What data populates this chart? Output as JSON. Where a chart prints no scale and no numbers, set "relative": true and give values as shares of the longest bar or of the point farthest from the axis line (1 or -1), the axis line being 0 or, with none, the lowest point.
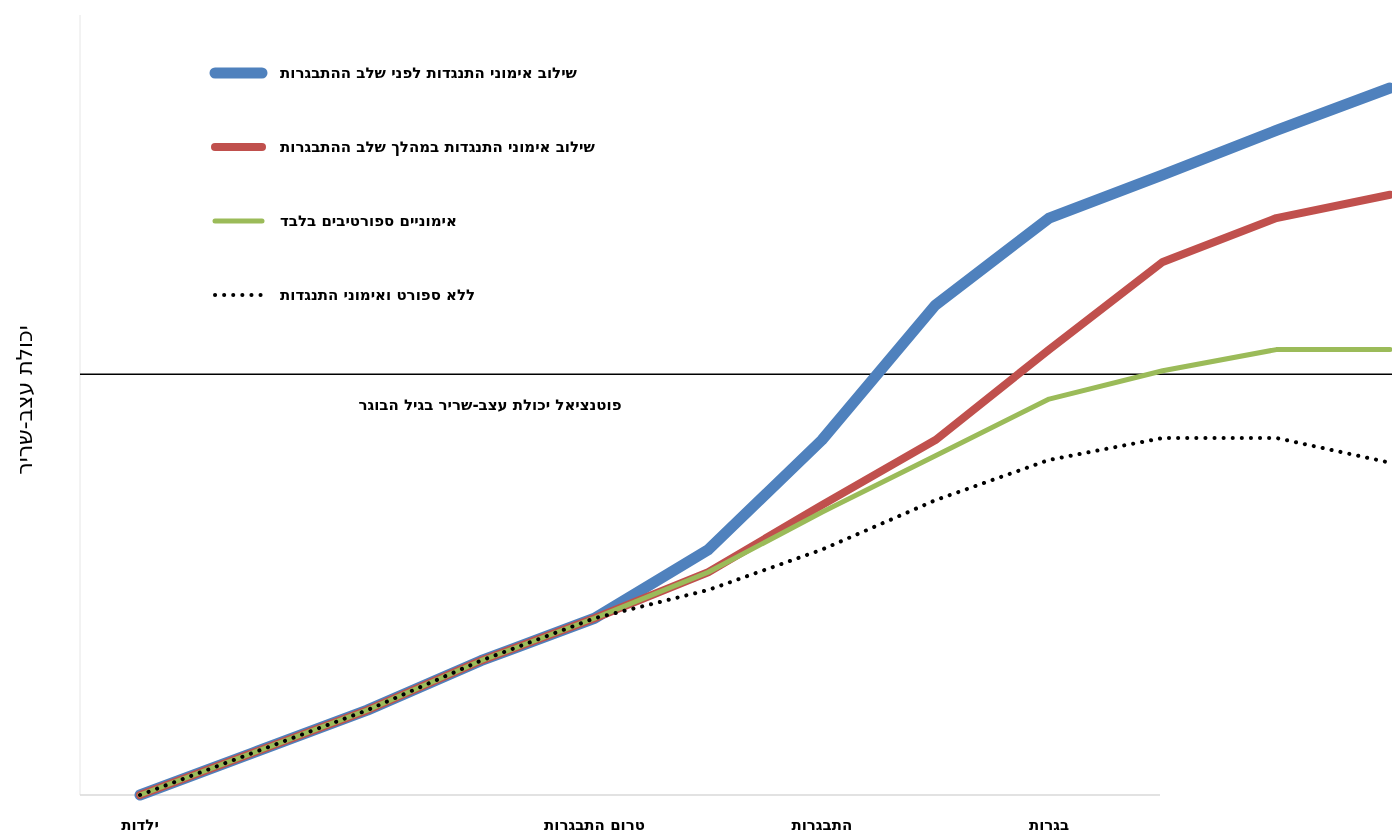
{
  "chart_data": {
    "type": "line",
    "relative": true,
    "ylabel": "יכולת עצב-שריר",
    "categories": [
      "ילדות",
      null,
      null,
      null,
      "טרום התבגרות",
      null,
      "התבגרות",
      null,
      "בגרות",
      null,
      null,
      null
    ],
    "marker": "none",
    "legend": "top left",
    "grid": false,
    "series": [
      {
        "name": "שילוב אימוני התנגדות לפני שלב ההתבגרות",
        "color": "#4f81bd",
        "values": [
          0,
          0.06,
          0.12,
          0.19,
          0.25,
          0.347,
          0.502,
          0.693,
          0.816,
          0.877,
          0.94,
          1
        ]
      },
      {
        "name": "שילוב אימוני התנגדות במהלך שלב ההתבגרות",
        "color": "#c0504d",
        "values": [
          0,
          0.06,
          0.12,
          0.19,
          0.25,
          0.315,
          0.41,
          0.502,
          0.63,
          0.754,
          0.816,
          0.849
        ]
      },
      {
        "name": "אימוניים ספורטיבים בלבד",
        "color": "#9bbb59",
        "values": [
          0,
          0.06,
          0.12,
          0.19,
          0.25,
          0.315,
          0.4,
          0.48,
          0.56,
          0.6,
          0.63,
          0.63
        ]
      },
      {
        "name": "ללא ספורט ואימוני התנגדות",
        "color": "#000000",
        "line_style": "dotted",
        "values": [
          0,
          0.06,
          0.12,
          0.19,
          0.25,
          0.29,
          0.347,
          0.417,
          0.474,
          0.505,
          0.505,
          0.47
        ]
      }
    ],
    "ref_lines": [
      {
        "axis": "y",
        "value": 0.595,
        "label": "פוטנציאל יכולת עצב-שריר בגיל הבוגר",
        "color": "#000000"
      }
    ]
  }
}
